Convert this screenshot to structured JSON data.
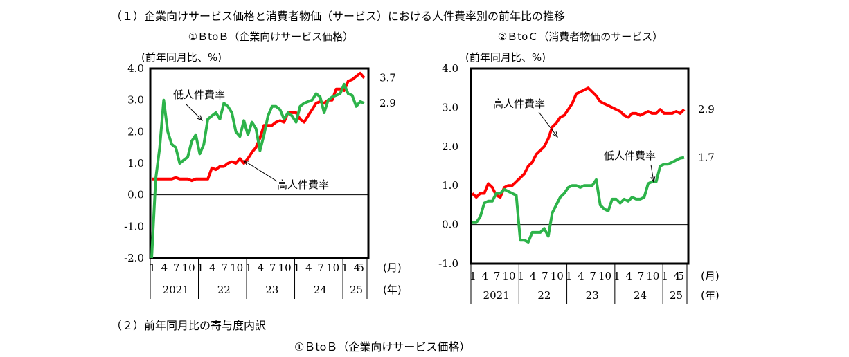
{
  "page": {
    "section1_title": "（１）企業向けサービス価格と消費者物価（サービス）における人件費率別の前年比の推移",
    "section2_title": "（２）前年同月比の寄与度内訳",
    "section2_subtitle": "①ＢtoＢ（企業向けサービス価格）"
  },
  "colors": {
    "high": "#ff0000",
    "low": "#2db34a"
  },
  "chart_data": [
    {
      "type": "line",
      "title": "①ＢtoＢ（企業向けサービス価格）",
      "ylabel": "(前年同月比、%)",
      "xlabel_unit_month": "(月)",
      "xlabel_unit_year": "(年)",
      "ylim": [
        -2.0,
        4.0
      ],
      "yticks": [
        "4.0",
        "3.0",
        "2.0",
        "1.0",
        "0.0",
        "-1.0",
        "-2.0"
      ],
      "month_ticks": [
        "1",
        "4",
        "7",
        "10",
        "1",
        "4",
        "7",
        "10",
        "1",
        "4",
        "7",
        "10",
        "1",
        "4",
        "7",
        "10",
        "1",
        "4",
        "5"
      ],
      "year_labels": [
        "2021",
        "22",
        "23",
        "24",
        "25"
      ],
      "x_start": "2021-01",
      "x_end": "2025-05",
      "series": [
        {
          "name": "高人件費率",
          "color": "#ff0000",
          "end_label": "3.7",
          "values": [
            0.5,
            0.5,
            0.5,
            0.5,
            0.5,
            0.5,
            0.55,
            0.5,
            0.5,
            0.5,
            0.45,
            0.5,
            0.5,
            0.5,
            0.5,
            0.85,
            0.8,
            0.9,
            0.9,
            1.0,
            1.05,
            1.0,
            1.15,
            1.0,
            1.15,
            1.35,
            1.5,
            1.8,
            2.2,
            2.2,
            2.2,
            2.3,
            2.35,
            2.3,
            2.6,
            2.6,
            2.6,
            2.4,
            2.3,
            2.5,
            2.7,
            2.9,
            2.95,
            2.9,
            3.0,
            3.0,
            3.35,
            3.35,
            3.3,
            3.6,
            3.65,
            3.75,
            3.85,
            3.7
          ]
        },
        {
          "name": "低人件費率",
          "color": "#2db34a",
          "end_label": "2.9",
          "values": [
            -2.0,
            0.5,
            1.5,
            3.0,
            2.0,
            1.6,
            1.5,
            1.0,
            1.1,
            1.2,
            1.7,
            1.9,
            1.3,
            1.6,
            2.4,
            2.5,
            2.6,
            2.4,
            2.9,
            2.8,
            2.6,
            2.0,
            1.85,
            2.35,
            1.9,
            2.3,
            2.1,
            1.4,
            1.9,
            2.5,
            2.8,
            2.8,
            2.7,
            2.4,
            2.6,
            2.5,
            2.3,
            2.8,
            2.9,
            2.95,
            3.0,
            3.2,
            3.1,
            2.6,
            3.0,
            3.1,
            3.15,
            3.2,
            3.5,
            3.2,
            3.15,
            2.8,
            2.95,
            2.9
          ]
        }
      ],
      "annotations": [
        "高人件費率",
        "低人件費率"
      ]
    },
    {
      "type": "line",
      "title": "②ＢtoＣ（消費者物価のサービス）",
      "ylabel": "(前年同月比、%)",
      "xlabel_unit_month": "(月)",
      "xlabel_unit_year": "(年)",
      "ylim": [
        -1.0,
        4.0
      ],
      "yticks": [
        "4.0",
        "3.0",
        "2.0",
        "1.0",
        "0.0",
        "-1.0"
      ],
      "month_ticks": [
        "1",
        "4",
        "7",
        "10",
        "1",
        "4",
        "7",
        "10",
        "1",
        "4",
        "7",
        "10",
        "1",
        "4",
        "7",
        "10",
        "1",
        "4",
        "5"
      ],
      "year_labels": [
        "2021",
        "22",
        "23",
        "24",
        "25"
      ],
      "x_start": "2021-01",
      "x_end": "2025-05",
      "series": [
        {
          "name": "高人件費率",
          "color": "#ff0000",
          "end_label": "2.9",
          "values": [
            0.8,
            0.7,
            0.8,
            0.8,
            1.05,
            0.95,
            0.75,
            0.7,
            0.95,
            1.0,
            1.0,
            1.1,
            1.2,
            1.3,
            1.5,
            1.6,
            1.8,
            1.9,
            2.0,
            2.2,
            2.5,
            2.6,
            2.75,
            2.8,
            2.95,
            3.1,
            3.35,
            3.4,
            3.45,
            3.5,
            3.4,
            3.3,
            3.15,
            3.1,
            3.05,
            3.0,
            2.95,
            2.9,
            2.8,
            2.75,
            2.85,
            2.85,
            2.8,
            2.85,
            2.9,
            2.85,
            2.85,
            2.95,
            2.85,
            2.85,
            2.85,
            2.9,
            2.85,
            2.95
          ]
        },
        {
          "name": "低人件費率",
          "color": "#2db34a",
          "end_label": "1.7",
          "values": [
            0.05,
            0.05,
            0.2,
            0.55,
            0.6,
            0.6,
            0.8,
            0.8,
            0.9,
            0.85,
            0.8,
            0.75,
            -0.4,
            -0.4,
            -0.45,
            -0.2,
            -0.2,
            -0.2,
            -0.1,
            -0.3,
            0.3,
            0.5,
            0.7,
            0.8,
            0.95,
            1.0,
            1.0,
            0.95,
            1.0,
            1.0,
            1.0,
            1.15,
            0.5,
            0.4,
            0.35,
            0.65,
            0.65,
            0.55,
            0.65,
            0.6,
            0.7,
            0.65,
            0.65,
            0.7,
            1.05,
            1.1,
            1.1,
            1.5,
            1.55,
            1.55,
            1.6,
            1.65,
            1.7,
            1.72
          ]
        }
      ],
      "annotations": [
        "高人件費率",
        "低人件費率"
      ]
    }
  ]
}
